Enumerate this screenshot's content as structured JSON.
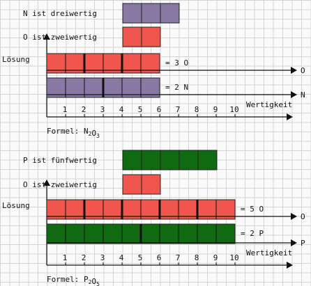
{
  "colors": {
    "nitrogen": "#8878a4",
    "oxygen": "#f0564e",
    "phosphorus": "#0f6a12",
    "axis": "#111111"
  },
  "panels": [
    {
      "bars": [
        {
          "label": "N ist dreiwertig",
          "cells": 3,
          "color_key": "nitrogen"
        },
        {
          "label": "O ist zweiwertig",
          "cells": 2,
          "color_key": "oxygen"
        }
      ],
      "solution_label": "Lösung",
      "solution_bars": [
        {
          "cells": 6,
          "group": 2,
          "result": "= 3 O",
          "axis_label": "O",
          "color_key": "oxygen"
        },
        {
          "cells": 6,
          "group": 3,
          "result": "= 2 N",
          "axis_label": "N",
          "color_key": "nitrogen"
        }
      ],
      "ticks": [
        "1",
        "2",
        "3",
        "4",
        "5",
        "6",
        "7",
        "8",
        "9",
        "10"
      ],
      "x_axis_label": "Wertigkeit",
      "formula": {
        "prefix": "Formel: ",
        "parts": [
          [
            "N",
            "2"
          ],
          [
            "O",
            "3"
          ]
        ]
      }
    },
    {
      "bars": [
        {
          "label": "P ist fünfwertig",
          "cells": 5,
          "color_key": "phosphorus"
        },
        {
          "label": "O ist zweiwertig",
          "cells": 2,
          "color_key": "oxygen"
        }
      ],
      "solution_label": "Lösung",
      "solution_bars": [
        {
          "cells": 10,
          "group": 2,
          "result": "= 5 O",
          "axis_label": "O",
          "color_key": "oxygen"
        },
        {
          "cells": 10,
          "group": 5,
          "result": "= 2 P",
          "axis_label": "P",
          "color_key": "phosphorus"
        }
      ],
      "ticks": [
        "1",
        "2",
        "3",
        "4",
        "5",
        "6",
        "7",
        "8",
        "9",
        "10"
      ],
      "x_axis_label": "Wertigkeit",
      "formula": {
        "prefix": "Formel: ",
        "parts": [
          [
            "P",
            "2"
          ],
          [
            "O",
            "5"
          ]
        ]
      }
    }
  ]
}
